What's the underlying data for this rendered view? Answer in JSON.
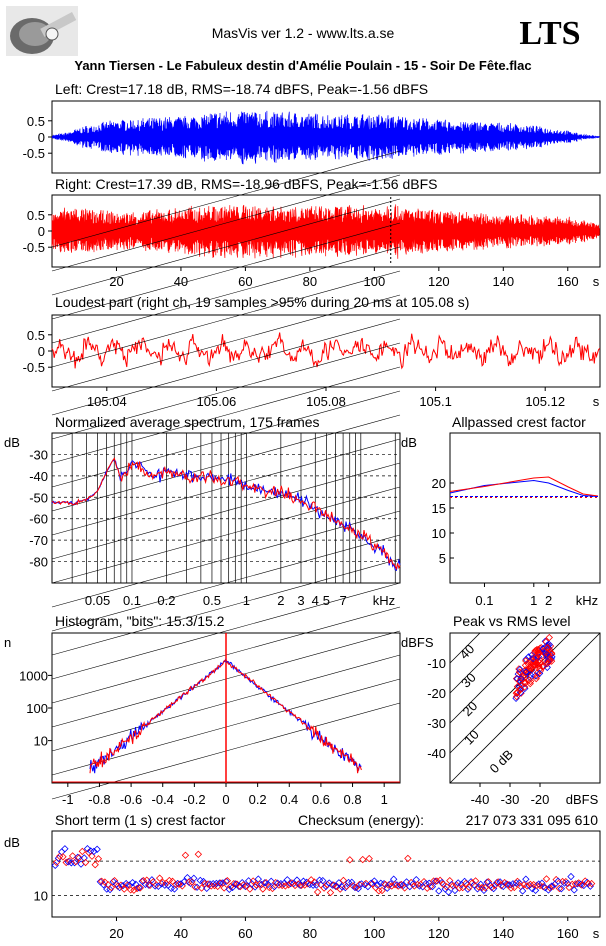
{
  "header": {
    "app": "MasVis ver 1.2 - www.lts.a.se",
    "logo_text": "LTS",
    "track": "Yann Tiersen - Le Fabuleux destin d'Amélie Poulain - 15 - Soir De Fête.flac"
  },
  "colors": {
    "left": "#0000ff",
    "right": "#ff0000",
    "grid": "#000000"
  },
  "chart_data": [
    {
      "id": "left",
      "type": "line",
      "title": "Left: Crest=17.18 dB, RMS=-18.74 dBFS, Peak=-1.56 dBFS",
      "xlim": [
        0,
        170
      ],
      "ylim": [
        -1,
        1
      ],
      "yticks": [
        "0.5",
        "0",
        "-0.5"
      ],
      "envelope": {
        "x": [
          0,
          5,
          10,
          20,
          30,
          40,
          50,
          60,
          70,
          80,
          90,
          100,
          110,
          120,
          130,
          140,
          150,
          160,
          165,
          170
        ],
        "amp": [
          0.05,
          0.15,
          0.35,
          0.55,
          0.6,
          0.65,
          0.8,
          0.85,
          0.8,
          0.75,
          0.7,
          0.75,
          0.65,
          0.55,
          0.5,
          0.45,
          0.35,
          0.2,
          0.08,
          0.02
        ]
      }
    },
    {
      "id": "right",
      "type": "line",
      "title": "Right: Crest=17.39 dB, RMS=-18.96 dBFS, Peak=-1.56 dBFS",
      "xlim": [
        0,
        170
      ],
      "ylim": [
        -1,
        1
      ],
      "yticks": [
        "0.5",
        "0",
        "-0.5"
      ],
      "xticks": [
        "20",
        "40",
        "60",
        "80",
        "100",
        "120",
        "140",
        "160"
      ],
      "xunit": "s",
      "marker_x": 105.08,
      "envelope": {
        "x": [
          0,
          5,
          10,
          20,
          30,
          40,
          50,
          60,
          70,
          80,
          90,
          100,
          105,
          110,
          120,
          130,
          140,
          150,
          160,
          165,
          170
        ],
        "amp": [
          0.6,
          0.8,
          0.7,
          0.6,
          0.65,
          0.75,
          0.85,
          0.85,
          0.85,
          0.8,
          0.8,
          0.8,
          0.95,
          0.75,
          0.65,
          0.6,
          0.55,
          0.5,
          0.45,
          0.35,
          0.2
        ]
      }
    },
    {
      "id": "loudest",
      "type": "line",
      "title": "Loudest part (right ch, 19 samples >95% during 20 ms at 105.08 s)",
      "xlim": [
        105.03,
        105.13
      ],
      "ylim": [
        -1,
        1
      ],
      "yticks": [
        "0.5",
        "0",
        "-0.5"
      ],
      "xticks": [
        "105.04",
        "105.06",
        "105.08",
        "105.1",
        "105.12"
      ],
      "xunit": "s"
    },
    {
      "id": "spectrum",
      "type": "line",
      "title": "Normalized average spectrum, 175 frames",
      "yunit": "dB",
      "yticks": [
        "-30",
        "-40",
        "-50",
        "-60",
        "-70",
        "-80"
      ],
      "ylim": [
        -90,
        -20
      ],
      "xticks": [
        "0.05",
        "0.1",
        "0.2",
        "0.5",
        "1",
        "2",
        "3",
        "4",
        "5",
        "7"
      ],
      "xunit": "kHz",
      "curve": {
        "f": [
          0.02,
          0.03,
          0.04,
          0.05,
          0.06,
          0.07,
          0.08,
          0.1,
          0.15,
          0.2,
          0.3,
          0.5,
          0.7,
          1,
          2,
          3,
          4,
          5,
          7,
          10,
          15,
          20
        ],
        "db": [
          -52,
          -53,
          -51,
          -47,
          -38,
          -32,
          -42,
          -33,
          -40,
          -38,
          -40,
          -41,
          -42,
          -45,
          -48,
          -52,
          -55,
          -58,
          -62,
          -68,
          -75,
          -82
        ]
      }
    },
    {
      "id": "allpass",
      "type": "line",
      "title": "Allpassed crest factor",
      "yunit": "dB",
      "yticks": [
        "20",
        "15",
        "10",
        "5"
      ],
      "ylim": [
        0,
        30
      ],
      "xticks": [
        "0.1",
        "1",
        "2"
      ],
      "xunit": "kHz",
      "series": [
        {
          "values_x": [
            0.02,
            0.1,
            0.5,
            1,
            2,
            5,
            10,
            20
          ],
          "values_y": [
            18.0,
            19.5,
            20.2,
            20.5,
            20.0,
            18.5,
            17.5,
            17.3
          ]
        },
        {
          "values_x": [
            0.02,
            0.1,
            0.5,
            1,
            2,
            5,
            10,
            20
          ],
          "values_y": [
            18.3,
            19.3,
            20.5,
            21.0,
            21.2,
            19.2,
            17.8,
            17.4
          ]
        }
      ],
      "reference": 17.3
    },
    {
      "id": "histogram",
      "type": "line",
      "title": "Histogram, \"bits\": 15.3/15.2",
      "yunit": "n",
      "yticks": [
        "1000",
        "100",
        "10"
      ],
      "xticks": [
        "-1",
        "-0.8",
        "-0.6",
        "-0.4",
        "-0.2",
        "0",
        "0.2",
        "0.4",
        "0.6",
        "0.8",
        "1"
      ],
      "xlim": [
        -1.1,
        1.1
      ]
    },
    {
      "id": "peakrms",
      "type": "scatter",
      "title": "Peak vs RMS level",
      "yunit": "dBFS",
      "yticks": [
        "-10",
        "-20",
        "-30",
        "-40"
      ],
      "xticks": [
        "-40",
        "-30",
        "-20"
      ],
      "xunit": "dBFS",
      "diag_labels": [
        "40",
        "30",
        "20",
        "10",
        "0 dB"
      ],
      "xlim": [
        -50,
        0
      ],
      "ylim": [
        -50,
        0
      ]
    },
    {
      "id": "shortterm",
      "type": "scatter",
      "title": "Short term (1 s) crest factor",
      "checksum_label": "Checksum (energy):",
      "checksum": "217 073 331 095 610",
      "yunit": "dB",
      "yticks": [
        "10"
      ],
      "xticks": [
        "20",
        "40",
        "60",
        "80",
        "100",
        "120",
        "140",
        "160"
      ],
      "xunit": "s",
      "xlim": [
        0,
        170
      ],
      "ylim": [
        5,
        25
      ]
    }
  ]
}
